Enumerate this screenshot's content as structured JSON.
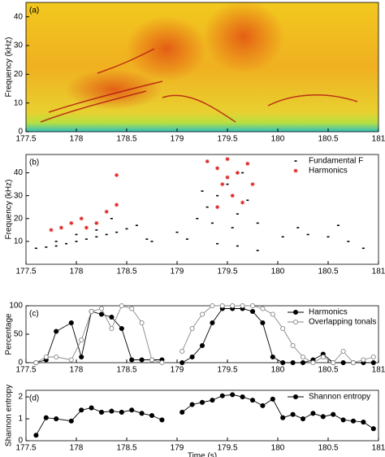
{
  "chart_data": [
    {
      "type": "spectrogram",
      "label": "(a)",
      "ylabel": "Frequency (kHz)",
      "xlim": [
        177.5,
        181
      ],
      "xticks": [
        177.5,
        178,
        178.5,
        179,
        179.5,
        180,
        180.5,
        181
      ],
      "ylim": [
        0,
        45
      ],
      "yticks": [
        0,
        10,
        20,
        30,
        40
      ]
    },
    {
      "type": "scatter",
      "label": "(b)",
      "ylabel": "Frequency (kHz)",
      "legend": "upper right",
      "xlim": [
        177.5,
        181
      ],
      "xticks": [
        177.5,
        178,
        178.5,
        179,
        179.5,
        180,
        180.5,
        181
      ],
      "ylim": [
        0,
        48
      ],
      "yticks": [
        10,
        20,
        30,
        40
      ],
      "series": [
        {
          "name": "Fundamental F",
          "color": "#000000",
          "marker": "dot",
          "x": [
            177.6,
            177.7,
            177.8,
            177.9,
            178.0,
            178.1,
            178.2,
            178.3,
            178.4,
            178.5,
            178.6,
            177.8,
            178.0,
            178.2,
            178.35,
            178.7,
            178.75,
            179.2,
            179.3,
            179.4,
            179.5,
            179.6,
            179.7,
            179.8,
            179.35,
            179.55,
            179.65,
            179.25,
            179.0,
            179.1,
            179.4,
            179.6,
            179.8,
            180.05,
            180.2,
            180.3,
            180.5,
            180.7,
            180.85,
            180.6
          ],
          "values": [
            7,
            7.5,
            8,
            9,
            10,
            11,
            12,
            13,
            14,
            15.5,
            17,
            10,
            13,
            15,
            20,
            11,
            10,
            20,
            25,
            30,
            35,
            22,
            28,
            18,
            18,
            16,
            40,
            32,
            14,
            11,
            9,
            8,
            6,
            12,
            16,
            13,
            12,
            10,
            7,
            17
          ]
        },
        {
          "name": "Harmonics",
          "color": "#e02020",
          "marker": "asterisk",
          "x": [
            177.75,
            177.85,
            177.95,
            178.05,
            178.1,
            178.2,
            178.3,
            178.4,
            178.4,
            179.3,
            179.4,
            179.5,
            179.6,
            179.7,
            179.45,
            179.55,
            179.65,
            179.4,
            179.75,
            179.5
          ],
          "values": [
            15,
            16,
            18,
            20,
            16,
            18,
            23,
            26,
            39,
            45,
            42,
            46,
            40,
            44,
            35,
            30,
            27,
            25,
            35,
            38
          ]
        }
      ]
    },
    {
      "type": "line",
      "label": "(c)",
      "ylabel": "Percentage",
      "legend": "upper right",
      "xlim": [
        177.5,
        181
      ],
      "xticks": [
        177.5,
        178,
        178.5,
        179,
        179.5,
        180,
        180.5,
        181
      ],
      "ylim": [
        0,
        100
      ],
      "yticks": [
        0,
        50,
        100
      ],
      "x": [
        177.6,
        177.7,
        177.8,
        177.95,
        178.05,
        178.15,
        178.25,
        178.35,
        178.45,
        178.55,
        178.65,
        178.75,
        178.85,
        178.95,
        179.05,
        179.15,
        179.25,
        179.35,
        179.45,
        179.55,
        179.65,
        179.75,
        179.85,
        179.95,
        180.05,
        180.15,
        180.25,
        180.35,
        180.45,
        180.55,
        180.65,
        180.75,
        180.85,
        180.95
      ],
      "series": [
        {
          "name": "Harmonics",
          "color": "#000000",
          "marker": "filled",
          "values": [
            0,
            5,
            55,
            70,
            10,
            90,
            85,
            80,
            60,
            5,
            5,
            5,
            5,
            null,
            0,
            10,
            30,
            70,
            95,
            95,
            95,
            90,
            70,
            10,
            0,
            0,
            0,
            5,
            15,
            0,
            0,
            0,
            0,
            0
          ]
        },
        {
          "name": "Overlapping tonals",
          "color": "#888888",
          "marker": "open",
          "values": [
            0,
            10,
            10,
            5,
            40,
            90,
            95,
            60,
            100,
            95,
            70,
            5,
            0,
            null,
            20,
            60,
            85,
            100,
            100,
            100,
            100,
            100,
            95,
            85,
            60,
            30,
            10,
            0,
            10,
            0,
            20,
            0,
            5,
            10
          ]
        }
      ]
    },
    {
      "type": "line",
      "label": "(d)",
      "ylabel": "Shannon entropy",
      "xlabel": "Time (s)",
      "legend": "upper right",
      "xlim": [
        177.5,
        181
      ],
      "xticks": [
        177.5,
        178,
        178.5,
        179,
        179.5,
        180,
        180.5,
        181
      ],
      "ylim": [
        0,
        2.3
      ],
      "yticks": [
        0,
        1,
        2
      ],
      "x": [
        177.6,
        177.7,
        177.8,
        177.95,
        178.05,
        178.15,
        178.25,
        178.35,
        178.45,
        178.55,
        178.65,
        178.75,
        178.85,
        178.95,
        179.05,
        179.15,
        179.25,
        179.35,
        179.45,
        179.55,
        179.65,
        179.75,
        179.85,
        179.95,
        180.05,
        180.15,
        180.25,
        180.35,
        180.45,
        180.55,
        180.65,
        180.75,
        180.85,
        180.95
      ],
      "series": [
        {
          "name": "Shannon entropy",
          "color": "#000000",
          "marker": "filled",
          "values": [
            0.25,
            1.05,
            1.0,
            0.9,
            1.4,
            1.5,
            1.3,
            1.35,
            1.3,
            1.4,
            1.25,
            1.15,
            0.95,
            null,
            1.3,
            1.65,
            1.75,
            1.85,
            2.05,
            2.1,
            2.0,
            1.85,
            1.6,
            1.9,
            1.05,
            1.2,
            1.0,
            1.25,
            1.1,
            1.2,
            0.95,
            0.9,
            0.85,
            0.55
          ]
        }
      ]
    }
  ]
}
